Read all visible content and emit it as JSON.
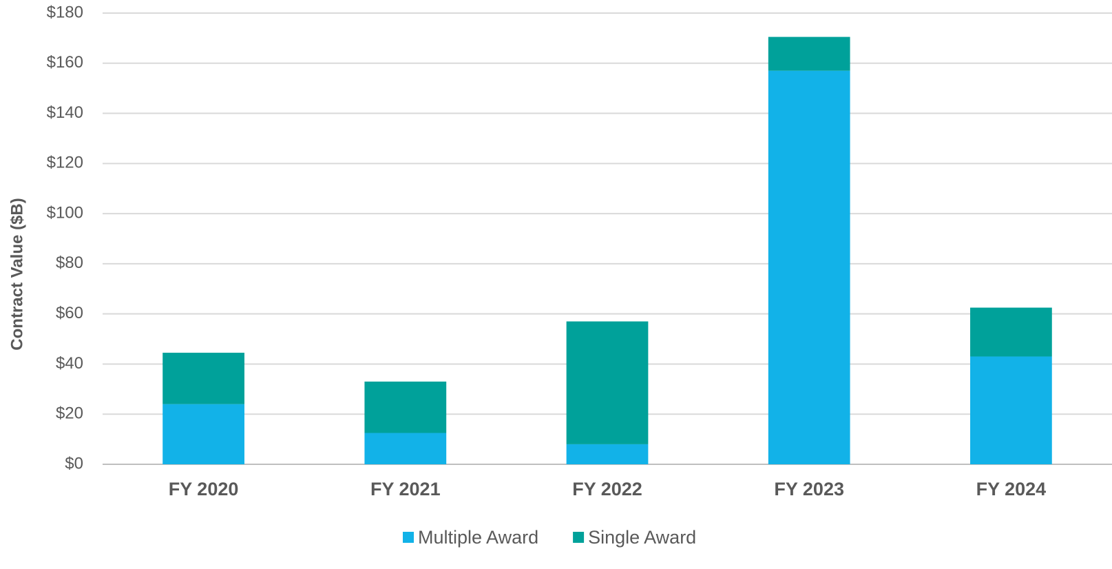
{
  "chart_data": {
    "type": "stacked_bar",
    "y_label": "Contract Value ($B)",
    "categories": [
      "FY 2020",
      "FY 2021",
      "FY 2022",
      "FY 2023",
      "FY 2024"
    ],
    "series": [
      {
        "name": "Multiple Award",
        "color": "#12b2e8",
        "values": [
          24,
          12.5,
          8,
          157,
          43
        ]
      },
      {
        "name": "Single Award",
        "color": "#00a19a",
        "values": [
          20.5,
          20.5,
          49,
          13.5,
          19.5
        ]
      }
    ],
    "ylim": [
      0,
      180
    ],
    "yticks": [
      {
        "value": 0,
        "label": "$0"
      },
      {
        "value": 20,
        "label": "$20"
      },
      {
        "value": 40,
        "label": "$40"
      },
      {
        "value": 60,
        "label": "$60"
      },
      {
        "value": 80,
        "label": "$80"
      },
      {
        "value": 100,
        "label": "$100"
      },
      {
        "value": 120,
        "label": "$120"
      },
      {
        "value": 140,
        "label": "$140"
      },
      {
        "value": 160,
        "label": "$160"
      },
      {
        "value": 180,
        "label": "$180"
      }
    ],
    "grid": true,
    "legend": "bottom"
  }
}
